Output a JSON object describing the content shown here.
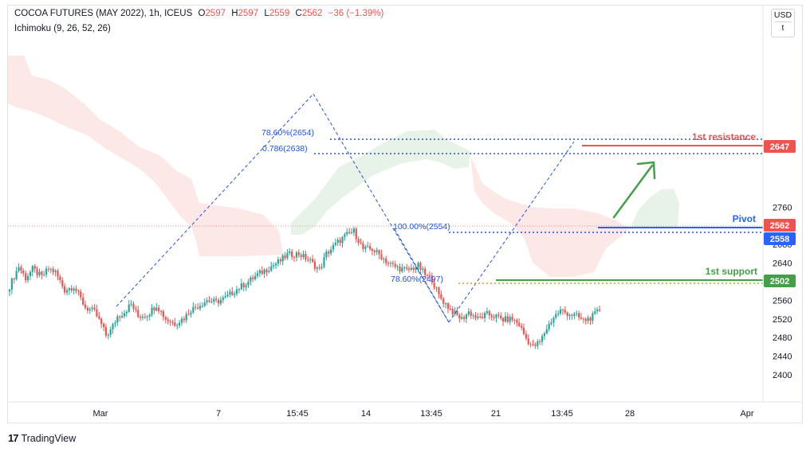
{
  "header": {
    "symbol": "COCOA FUTURES (MAY 2022), 1h, ICEUS",
    "o_label": "O",
    "o_value": "2597",
    "h_label": "H",
    "h_value": "2597",
    "l_label": "L",
    "l_value": "2559",
    "c_label": "C",
    "c_value": "2562",
    "change": "−36 (−1.39%)",
    "indicator": "Ichimoku (9, 26, 52, 26)"
  },
  "currency": {
    "label": "USD",
    "sub": "t"
  },
  "brand": {
    "logo": "17",
    "name": "TradingView"
  },
  "colors": {
    "up": "#26a69a",
    "down": "#ef5350",
    "resistance": "#ef5350",
    "pivot": "#2962ff",
    "support": "#43a047",
    "fib": "#1e53e5",
    "cloud_bear": "#fde4e4",
    "cloud_bull": "#e4f2e6",
    "arrow": "#43a047"
  },
  "chart_data": {
    "type": "candlestick",
    "title": "",
    "y_axis": {
      "ticks": [
        2400,
        2440,
        2480,
        2520,
        2560,
        2600,
        2640,
        2680,
        2720,
        2760
      ],
      "ylim": [
        2363,
        2774
      ]
    },
    "x_axis": {
      "ticks": [
        "Mar",
        "7",
        "15:45",
        "14",
        "13:45",
        "21",
        "13:45",
        "28",
        "Apr"
      ],
      "total_bars": 258
    },
    "price_path": [
      [
        0,
        2590
      ],
      [
        4,
        2633
      ],
      [
        7,
        2608
      ],
      [
        10,
        2627
      ],
      [
        14,
        2610
      ],
      [
        17,
        2628
      ],
      [
        20,
        2620
      ],
      [
        24,
        2582
      ],
      [
        28,
        2590
      ],
      [
        33,
        2545
      ],
      [
        37,
        2535
      ],
      [
        40,
        2508
      ],
      [
        42,
        2485
      ],
      [
        44,
        2495
      ],
      [
        47,
        2525
      ],
      [
        50,
        2535
      ],
      [
        53,
        2552
      ],
      [
        56,
        2525
      ],
      [
        60,
        2530
      ],
      [
        64,
        2550
      ],
      [
        68,
        2520
      ],
      [
        72,
        2510
      ],
      [
        76,
        2522
      ],
      [
        79,
        2540
      ],
      [
        82,
        2548
      ],
      [
        86,
        2560
      ],
      [
        90,
        2556
      ],
      [
        94,
        2565
      ],
      [
        99,
        2584
      ],
      [
        104,
        2600
      ],
      [
        108,
        2615
      ],
      [
        113,
        2630
      ],
      [
        118,
        2645
      ],
      [
        121,
        2658
      ],
      [
        126,
        2660
      ],
      [
        131,
        2644
      ],
      [
        135,
        2625
      ],
      [
        138,
        2660
      ],
      [
        143,
        2685
      ],
      [
        147,
        2701
      ],
      [
        150,
        2708
      ],
      [
        154,
        2670
      ],
      [
        158,
        2670
      ],
      [
        162,
        2654
      ],
      [
        165,
        2640
      ],
      [
        168,
        2632
      ],
      [
        173,
        2624
      ],
      [
        178,
        2634
      ],
      [
        181,
        2615
      ],
      [
        184,
        2605
      ],
      [
        187,
        2570
      ],
      [
        190,
        2552
      ],
      [
        194,
        2530
      ],
      [
        197,
        2520
      ],
      [
        200,
        2535
      ],
      [
        204,
        2520
      ],
      [
        208,
        2530
      ],
      [
        212,
        2525
      ],
      [
        215,
        2518
      ],
      [
        219,
        2520
      ],
      [
        222,
        2508
      ],
      [
        225,
        2478
      ],
      [
        228,
        2460
      ],
      [
        231,
        2470
      ],
      [
        234,
        2500
      ],
      [
        237,
        2524
      ],
      [
        240,
        2538
      ],
      [
        243,
        2532
      ],
      [
        247,
        2526
      ],
      [
        250,
        2516
      ],
      [
        254,
        2525
      ],
      [
        257,
        2540
      ]
    ],
    "levels": [
      {
        "name": "1st resistance",
        "value": 2647
      },
      {
        "name": "Pivot",
        "value": 2562
      },
      {
        "name": "1st support",
        "value": 2502
      }
    ],
    "last_price": 2558,
    "fib_labels": [
      "78.60%(2654)",
      "0.786(2638)",
      "100.00%(2554)",
      "78.60%(2497)"
    ]
  },
  "levels_text": {
    "resistance": "1st resistance",
    "resistance_value": "2647",
    "pivot": "Pivot",
    "pivot_value": "2562",
    "last_value": "2558",
    "support": "1st support",
    "support_value": "2502"
  },
  "fib": {
    "a": "78.60%(2654)",
    "b": "0.786(2638)",
    "c": "100.00%(2554)",
    "d": "78.60%(2497)"
  }
}
